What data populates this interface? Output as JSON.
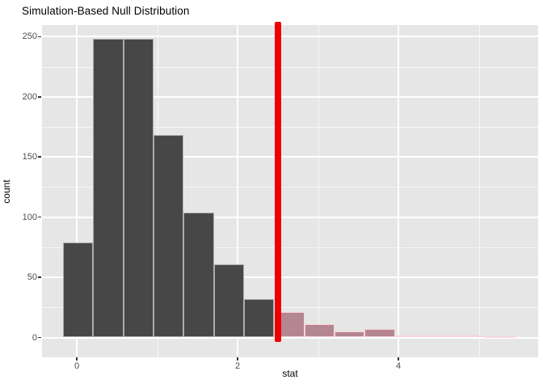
{
  "chart_data": {
    "type": "bar",
    "subtype": "histogram",
    "title": "Simulation-Based Null Distribution",
    "xlabel": "stat",
    "ylabel": "count",
    "x_breaks": [
      0,
      2,
      4
    ],
    "x_minor_breaks": [
      1,
      3,
      5
    ],
    "y_breaks": [
      0,
      50,
      100,
      150,
      200,
      250
    ],
    "y_minor_breaks": [
      25,
      75,
      125,
      175,
      225
    ],
    "xlim": [
      -0.43,
      5.74
    ],
    "ylim": [
      0,
      260
    ],
    "bin_start": -0.17,
    "bin_width": 0.375,
    "null_counts": [
      79,
      248,
      248,
      168,
      104,
      61,
      32
    ],
    "shaded_counts": [
      21,
      11,
      5,
      7,
      2,
      2,
      2,
      1
    ],
    "observed_stat": 2.5,
    "legend": "none",
    "grid": "on",
    "colors": {
      "null_fill": "#474747",
      "null_border": "rgba(255,255,255,0.55)",
      "shaded_fill": "#b48691",
      "shaded_border": "#f8d4db",
      "shaded_faint_fill": "#f3dce2",
      "observed_line": "#ec0000",
      "panel_bg": "#e6e6e6",
      "grid_major": "#ffffff",
      "grid_minor": "rgba(255,255,255,0.65)",
      "tick_mark": "#333333",
      "tick_text": "#4d4d4d",
      "title_text": "#000000"
    }
  }
}
